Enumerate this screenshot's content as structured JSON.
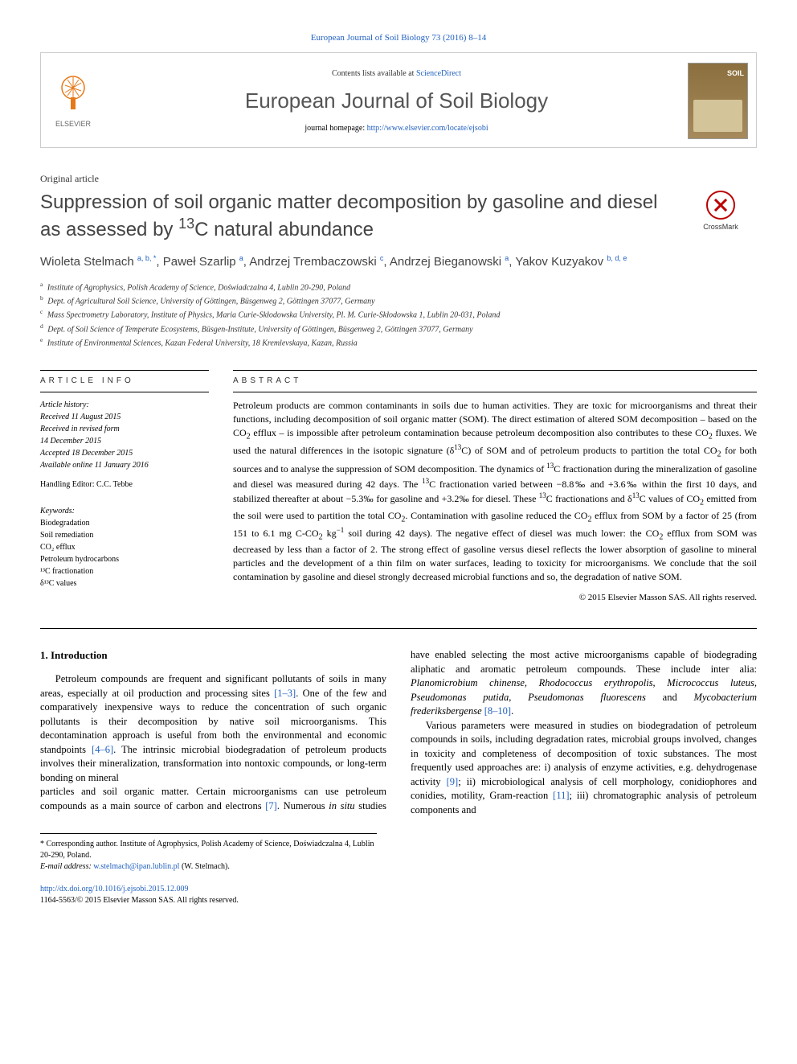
{
  "header": {
    "citation": "European Journal of Soil Biology 73 (2016) 8–14",
    "contents_prefix": "Contents lists available at ",
    "contents_link": "ScienceDirect",
    "journal_title": "European Journal of Soil Biology",
    "homepage_prefix": "journal homepage: ",
    "homepage_url": "http://www.elsevier.com/locate/ejsobi",
    "elsevier_label": "ELSEVIER"
  },
  "article": {
    "type": "Original article",
    "title_html": "Suppression of soil organic matter decomposition by gasoline and diesel as assessed by <sup>13</sup>C natural abundance",
    "crossmark": "CrossMark",
    "authors_html": "Wioleta Stelmach <sup>a, b, *</sup>, Paweł Szarlip <sup>a</sup>, Andrzej Trembaczowski <sup>c</sup>, Andrzej Bieganowski <sup>a</sup>, Yakov Kuzyakov <sup>b, d, e</sup>",
    "affiliations": [
      {
        "sup": "a",
        "text": "Institute of Agrophysics, Polish Academy of Science, Doświadczalna 4, Lublin 20-290, Poland"
      },
      {
        "sup": "b",
        "text": "Dept. of Agricultural Soil Science, University of Göttingen, Büsgenweg 2, Göttingen 37077, Germany"
      },
      {
        "sup": "c",
        "text": "Mass Spectrometry Laboratory, Institute of Physics, Maria Curie-Skłodowska University, Pl. M. Curie-Skłodowska 1, Lublin 20-031, Poland"
      },
      {
        "sup": "d",
        "text": "Dept. of Soil Science of Temperate Ecosystems, Büsgen-Institute, University of Göttingen, Büsgenweg 2, Göttingen 37077, Germany"
      },
      {
        "sup": "e",
        "text": "Institute of Environmental Sciences, Kazan Federal University, 18 Kremlevskaya, Kazan, Russia"
      }
    ]
  },
  "info": {
    "heading": "ARTICLE INFO",
    "history_label": "Article history:",
    "history": [
      "Received 11 August 2015",
      "Received in revised form",
      "14 December 2015",
      "Accepted 18 December 2015",
      "Available online 11 January 2016"
    ],
    "editor": "Handling Editor: C.C. Tebbe",
    "keywords_label": "Keywords:",
    "keywords": [
      "Biodegradation",
      "Soil remediation",
      "CO₂ efflux",
      "Petroleum hydrocarbons",
      "¹³C fractionation",
      "δ¹³C values"
    ]
  },
  "abstract": {
    "heading": "ABSTRACT",
    "text_html": "Petroleum products are common contaminants in soils due to human activities. They are toxic for microorganisms and threat their functions, including decomposition of soil organic matter (SOM). The direct estimation of altered SOM decomposition – based on the CO<sub>2</sub> efflux – is impossible after petroleum contamination because petroleum decomposition also contributes to these CO<sub>2</sub> fluxes. We used the natural differences in the isotopic signature (δ<sup>13</sup>C) of SOM and of petroleum products to partition the total CO<sub>2</sub> for both sources and to analyse the suppression of SOM decomposition. The dynamics of <sup>13</sup>C fractionation during the mineralization of gasoline and diesel was measured during 42 days. The <sup>13</sup>C fractionation varied between −8.8‰ and +3.6‰ within the first 10 days, and stabilized thereafter at about −5.3‰ for gasoline and +3.2‰ for diesel. These <sup>13</sup>C fractionations and δ<sup>13</sup>C values of CO<sub>2</sub> emitted from the soil were used to partition the total CO<sub>2</sub>. Contamination with gasoline reduced the CO<sub>2</sub> efflux from SOM by a factor of 25 (from 151 to 6.1 mg C-CO<sub>2</sub> kg<sup>−1</sup> soil during 42 days). The negative effect of diesel was much lower: the CO<sub>2</sub> efflux from SOM was decreased by less than a factor of 2. The strong effect of gasoline versus diesel reflects the lower absorption of gasoline to mineral particles and the development of a thin film on water surfaces, leading to toxicity for microorganisms. We conclude that the soil contamination by gasoline and diesel strongly decreased microbial functions and so, the degradation of native SOM.",
    "copyright": "© 2015 Elsevier Masson SAS. All rights reserved."
  },
  "body": {
    "section_num": "1.",
    "section_title": "Introduction",
    "para1_html": "Petroleum compounds are frequent and significant pollutants of soils in many areas, especially at oil production and processing sites <a href=\"#\">[1–3]</a>. One of the few and comparatively inexpensive ways to reduce the concentration of such organic pollutants is their decomposition by native soil microorganisms. This decontamination approach is useful from both the environmental and economic standpoints <a href=\"#\">[4–6]</a>. The intrinsic microbial biodegradation of petroleum products involves their mineralization, transformation into nontoxic compounds, or long-term bonding on mineral",
    "para2_html": "particles and soil organic matter. Certain microorganisms can use petroleum compounds as a main source of carbon and electrons <a href=\"#\">[7]</a>. Numerous <em>in situ</em> studies have enabled selecting the most active microorganisms capable of biodegrading aliphatic and aromatic petroleum compounds. These include inter alia: <em>Planomicrobium chinense, Rhodococcus erythropolis, Micrococcus luteus, Pseudomonas putida, Pseudomonas fluorescens</em> and <em>Mycobacterium frederiksbergense</em> <a href=\"#\">[8–10]</a>.",
    "para3_html": "Various parameters were measured in studies on biodegradation of petroleum compounds in soils, including degradation rates, microbial groups involved, changes in toxicity and completeness of decomposition of toxic substances. The most frequently used approaches are: i) analysis of enzyme activities, e.g. dehydrogenase activity <a href=\"#\">[9]</a>; ii) microbiological analysis of cell morphology, conidiophores and conidies, motility, Gram-reaction <a href=\"#\">[11]</a>; iii) chromatographic analysis of petroleum components and"
  },
  "footnote": {
    "corr_html": "* Corresponding author. Institute of Agrophysics, Polish Academy of Science, Doświadczalna 4, Lublin 20-290, Poland.",
    "email_label": "E-mail address: ",
    "email": "w.stelmach@ipan.lublin.pl",
    "email_suffix": " (W. Stelmach)."
  },
  "doi": {
    "url": "http://dx.doi.org/10.1016/j.ejsobi.2015.12.009",
    "issn_line": "1164-5563/© 2015 Elsevier Masson SAS. All rights reserved."
  },
  "colors": {
    "link": "#2060c0",
    "text": "#000000",
    "heading_gray": "#444444",
    "border": "#cccccc"
  }
}
